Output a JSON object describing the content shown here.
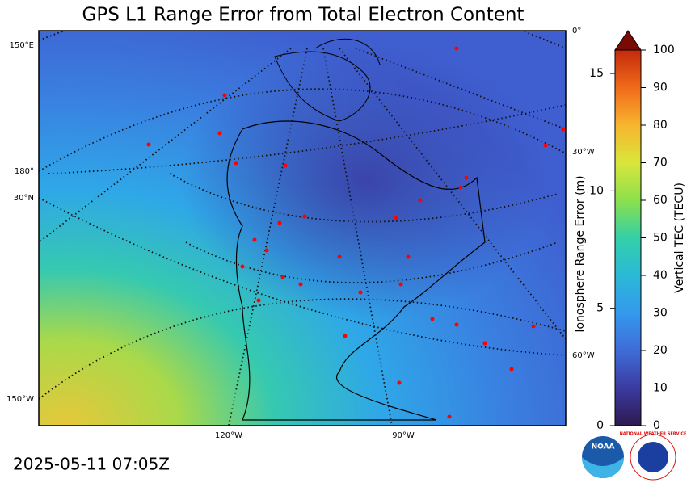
{
  "title": "GPS L1 Range Error from Total Electron Content",
  "timestamp": "2025-05-11 07:05Z",
  "map": {
    "grid_labels_left": [
      "150°E",
      "180°",
      "30°N",
      "150°W"
    ],
    "grid_labels_right": [
      "0°",
      "30°W",
      "60°W"
    ],
    "grid_labels_bottom": [
      "120°W",
      "90°W"
    ]
  },
  "colorbar": {
    "label": "Vertical TEC (TECU)",
    "lim": [
      0,
      100
    ],
    "ticks": [
      0,
      10,
      20,
      30,
      40,
      50,
      60,
      70,
      80,
      90,
      100
    ],
    "colors": [
      "#2d1a4e",
      "#3b3aa0",
      "#3f6cd8",
      "#3399ee",
      "#2bb9d6",
      "#33d0a8",
      "#8ce04c",
      "#d9e63b",
      "#f7b52e",
      "#f06a1a",
      "#c42a0c",
      "#7a0a04"
    ],
    "range_error_label": "Ionosphere Range Error (m)",
    "range_error_lim": [
      0,
      16
    ],
    "range_error_ticks": [
      0,
      5,
      10,
      15
    ]
  },
  "logos": {
    "noaa": "NOAA",
    "nws": "NATIONAL WEATHER SERVICE"
  }
}
